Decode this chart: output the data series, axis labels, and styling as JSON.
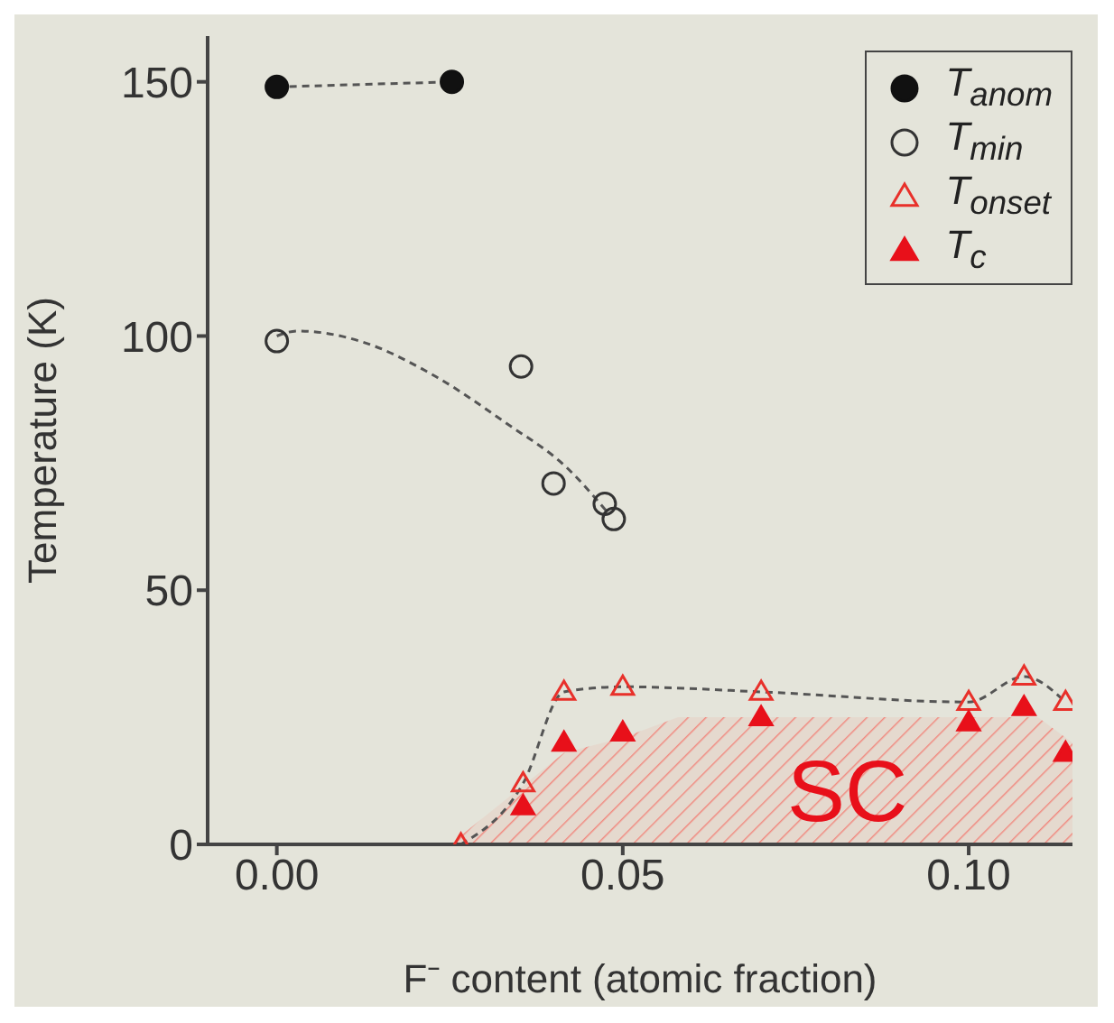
{
  "chart_data": {
    "type": "scatter",
    "xlabel": "F⁻ content (atomic fraction)",
    "ylabel": "Temperature (K)",
    "xlim": [
      -0.01,
      0.115
    ],
    "ylim": [
      0,
      159
    ],
    "xticks": [
      {
        "value": 0,
        "label": "0.00"
      },
      {
        "value": 0.05,
        "label": "0.05"
      },
      {
        "value": 0.1,
        "label": "0.10"
      }
    ],
    "yticks": [
      0,
      50,
      100,
      150
    ],
    "legend": "top right",
    "annotations": [
      "SC"
    ],
    "series": [
      {
        "type": "area",
        "color": "#f08a80",
        "x": [
          0.025,
          0.0415,
          0.05,
          0.058,
          0.11,
          0.115
        ],
        "values": [
          0,
          18,
          21,
          25,
          25,
          20
        ]
      },
      {
        "type": "line",
        "line_style": "dashed",
        "marker": "none",
        "color": "#555555",
        "x": [
          0,
          0.0253
        ],
        "values": [
          149,
          150
        ]
      },
      {
        "type": "line",
        "line_style": "dashed",
        "marker": "none",
        "color": "#555555",
        "x": [
          0,
          0.003,
          0.012,
          0.023,
          0.033,
          0.042,
          0.048
        ],
        "values": [
          100,
          101,
          99,
          92,
          83,
          74,
          65
        ]
      },
      {
        "type": "line",
        "line_style": "dashed",
        "marker": "none",
        "color": "#555555",
        "x": [
          0.0266,
          0.0356,
          0.0415,
          0.05,
          0.07,
          0.1,
          0.108,
          0.114
        ],
        "values": [
          0,
          12,
          30,
          31,
          30,
          28,
          33,
          28
        ]
      },
      {
        "name": "T$_{anom}$",
        "marker": "circle",
        "color": "#111111",
        "x": [
          0,
          0.0253
        ],
        "values": [
          149,
          150
        ]
      },
      {
        "name": "T$_{min}$",
        "marker": "circle-open",
        "color": "#333333",
        "x": [
          0,
          0.0353,
          0.04,
          0.0474,
          0.0487
        ],
        "values": [
          99,
          94,
          71,
          67,
          64
        ]
      },
      {
        "name": "T$_{onset}$",
        "marker": "triangle-open",
        "color": "#e8302a",
        "x": [
          0.0266,
          0.0356,
          0.0415,
          0.05,
          0.07,
          0.1,
          0.108,
          0.114
        ],
        "values": [
          0,
          12,
          30,
          31,
          30,
          28,
          33,
          28
        ]
      },
      {
        "name": "T$_{c}$",
        "marker": "triangle",
        "color": "#e8101a",
        "x": [
          0.0356,
          0.0415,
          0.05,
          0.07,
          0.1,
          0.108,
          0.114
        ],
        "values": [
          7.5,
          20,
          22,
          25,
          24,
          27,
          18
        ]
      }
    ]
  }
}
